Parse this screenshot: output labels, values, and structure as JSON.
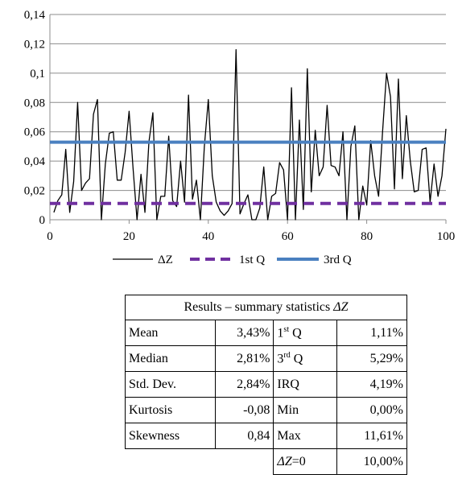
{
  "chart_data": {
    "type": "line",
    "xlim": [
      0,
      100
    ],
    "ylim": [
      0,
      0.14
    ],
    "x_ticks": [
      "0",
      "20",
      "40",
      "60",
      "80",
      "100"
    ],
    "y_ticks": [
      "0",
      "0,02",
      "0,04",
      "0,06",
      "0,08",
      "0,1",
      "0,12",
      "0,14"
    ],
    "grid": "horizontal",
    "legend_position": "bottom",
    "series": [
      {
        "name": "ΔZ",
        "color": "#000000",
        "style": "solid",
        "x": [
          1,
          2,
          3,
          4,
          5,
          6,
          7,
          8,
          9,
          10,
          11,
          12,
          13,
          14,
          15,
          16,
          17,
          18,
          19,
          20,
          21,
          22,
          23,
          24,
          25,
          26,
          27,
          28,
          29,
          30,
          31,
          32,
          33,
          34,
          35,
          36,
          37,
          38,
          39,
          40,
          41,
          42,
          43,
          44,
          45,
          46,
          47,
          48,
          49,
          50,
          51,
          52,
          53,
          54,
          55,
          56,
          57,
          58,
          59,
          60,
          61,
          62,
          63,
          64,
          65,
          66,
          67,
          68,
          69,
          70,
          71,
          72,
          73,
          74,
          75,
          76,
          77,
          78,
          79,
          80,
          81,
          82,
          83,
          84,
          85,
          86,
          87,
          88,
          89,
          90,
          91,
          92,
          93,
          94,
          95,
          96,
          97,
          98,
          99,
          100
        ],
        "values": [
          0.005,
          0.013,
          0.017,
          0.048,
          0.005,
          0.026,
          0.08,
          0.02,
          0.025,
          0.028,
          0.072,
          0.082,
          0.0,
          0.038,
          0.059,
          0.06,
          0.027,
          0.027,
          0.046,
          0.074,
          0.035,
          0.0,
          0.031,
          0.005,
          0.053,
          0.073,
          0.0,
          0.016,
          0.016,
          0.057,
          0.013,
          0.009,
          0.04,
          0.012,
          0.085,
          0.014,
          0.027,
          0.0,
          0.05,
          0.082,
          0.03,
          0.012,
          0.006,
          0.003,
          0.006,
          0.011,
          0.116,
          0.004,
          0.011,
          0.017,
          0.0,
          0.0,
          0.008,
          0.036,
          0.0,
          0.016,
          0.018,
          0.039,
          0.034,
          0.0,
          0.09,
          0.0,
          0.068,
          0.007,
          0.103,
          0.019,
          0.061,
          0.03,
          0.036,
          0.078,
          0.037,
          0.036,
          0.03,
          0.06,
          0.0,
          0.05,
          0.064,
          0.0,
          0.023,
          0.01,
          0.054,
          0.03,
          0.016,
          0.06,
          0.1,
          0.084,
          0.021,
          0.096,
          0.028,
          0.071,
          0.04,
          0.019,
          0.02,
          0.048,
          0.049,
          0.012,
          0.038,
          0.016,
          0.03,
          0.062
        ]
      },
      {
        "name": "1st Q",
        "color": "#7030a0",
        "style": "dashed",
        "x": [
          0,
          100
        ],
        "values": [
          0.0111,
          0.0111
        ]
      },
      {
        "name": "3rd Q",
        "color": "#4a80c0",
        "style": "solid",
        "x": [
          0,
          100
        ],
        "values": [
          0.0529,
          0.0529
        ]
      }
    ]
  },
  "table": {
    "title_prefix": "Results – summary statistics ",
    "title_var": "ΔZ",
    "rows": [
      {
        "label": "Mean",
        "value": "3,43%",
        "label2_base": "1",
        "label2_sup": "st",
        "label2_rest": " Q",
        "value2": "1,11%"
      },
      {
        "label": "Median",
        "value": "2,81%",
        "label2_base": "3",
        "label2_sup": "rd",
        "label2_rest": " Q",
        "value2": "5,29%"
      },
      {
        "label": "Std. Dev.",
        "value": "2,84%",
        "label2_base": "IRQ",
        "label2_sup": "",
        "label2_rest": "",
        "value2": "4,19%"
      },
      {
        "label": "Kurtosis",
        "value": "-0,08",
        "label2_base": "Min",
        "label2_sup": "",
        "label2_rest": "",
        "value2": "0,00%"
      },
      {
        "label": "Skewness",
        "value": "0,84",
        "label2_base": "Max",
        "label2_sup": "",
        "label2_rest": "",
        "value2": "11,61%"
      }
    ],
    "last_row": {
      "var": "ΔZ",
      "cond": "=0",
      "value": "10,00%"
    }
  }
}
